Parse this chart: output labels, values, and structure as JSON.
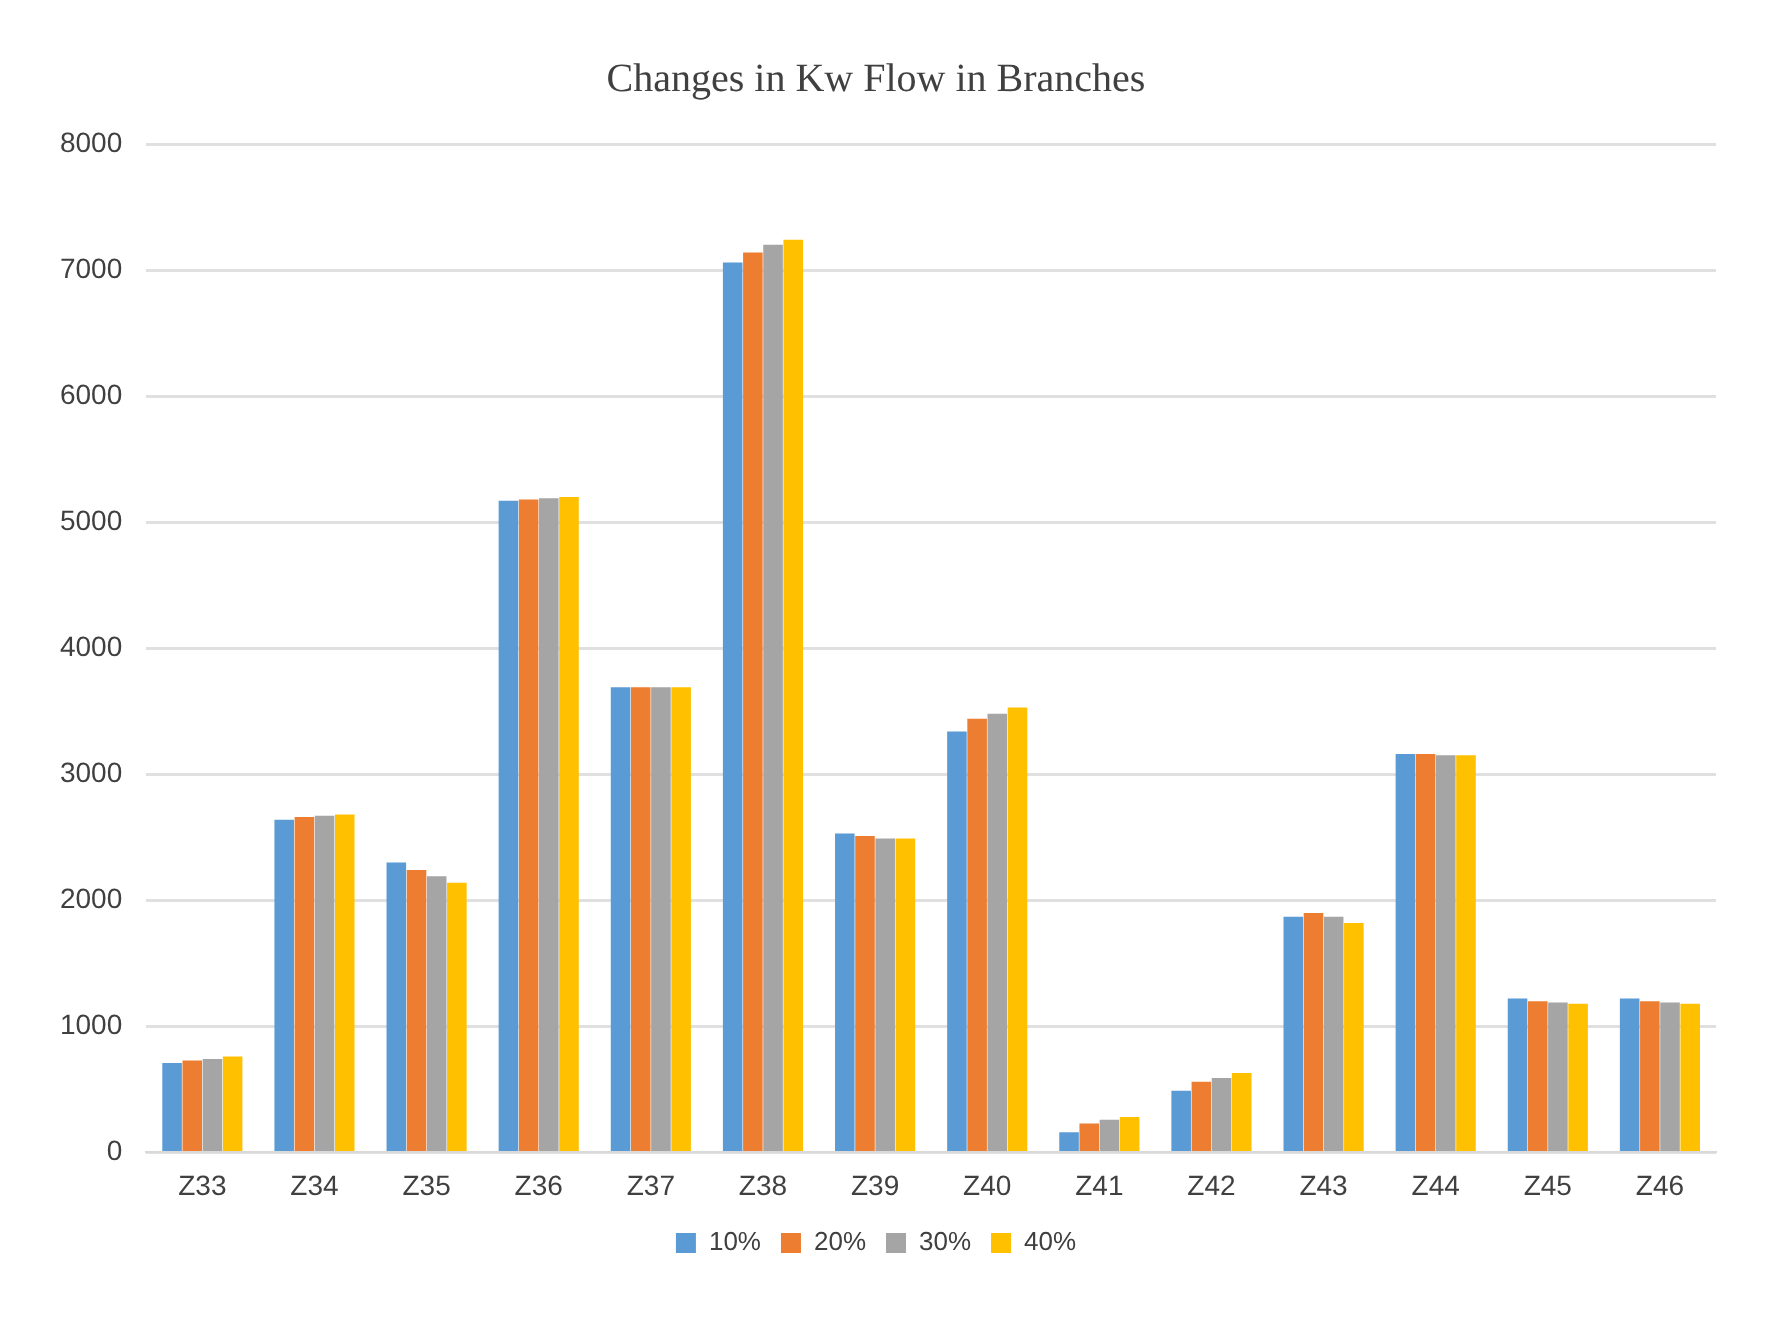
{
  "chart_data": {
    "type": "bar",
    "title": "Changes in Kw Flow in Branches",
    "categories": [
      "Z33",
      "Z34",
      "Z35",
      "Z36",
      "Z37",
      "Z38",
      "Z39",
      "Z40",
      "Z41",
      "Z42",
      "Z43",
      "Z44",
      "Z45",
      "Z46"
    ],
    "series": [
      {
        "name": "10%",
        "color": "#5b9bd5",
        "values": [
          710,
          2640,
          2300,
          5170,
          3690,
          7060,
          2530,
          3340,
          160,
          490,
          1870,
          3160,
          1220,
          1220
        ]
      },
      {
        "name": "20%",
        "color": "#ed7d31",
        "values": [
          730,
          2660,
          2240,
          5180,
          3690,
          7140,
          2510,
          3440,
          230,
          560,
          1900,
          3160,
          1200,
          1200
        ]
      },
      {
        "name": "30%",
        "color": "#a5a5a5",
        "values": [
          740,
          2670,
          2190,
          5190,
          3690,
          7200,
          2490,
          3480,
          260,
          590,
          1870,
          3150,
          1190,
          1190
        ]
      },
      {
        "name": "40%",
        "color": "#ffc000",
        "values": [
          760,
          2680,
          2140,
          5200,
          3690,
          7240,
          2490,
          3530,
          280,
          630,
          1820,
          3150,
          1180,
          1180
        ]
      }
    ],
    "ylim": [
      0,
      8000
    ],
    "yticks": [
      0,
      1000,
      2000,
      3000,
      4000,
      5000,
      6000,
      7000,
      8000
    ],
    "grid": "y",
    "legend": "bottom"
  }
}
